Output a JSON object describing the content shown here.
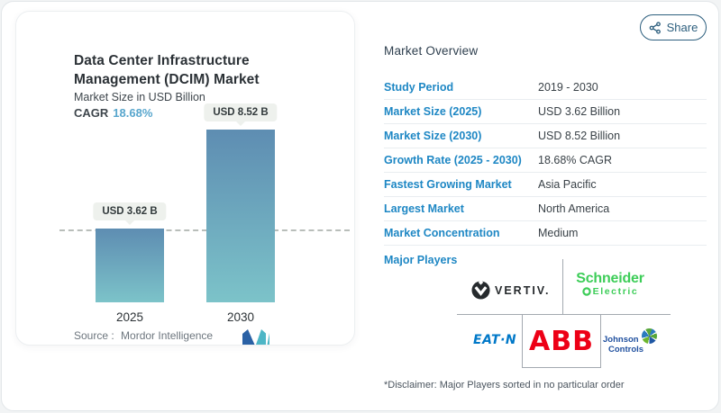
{
  "share": {
    "label": "Share",
    "icon": "share-nodes-icon"
  },
  "chart_card": {
    "title_lines": [
      "Data Center Infrastructure",
      "Management (DCIM) Market"
    ],
    "subtitle": "Market Size in USD Billion",
    "cagr_label": "CAGR",
    "cagr_value": "18.68%",
    "source_label": "Source :",
    "source_value": "Mordor Intelligence",
    "brand_logo": "mordor-intelligence-icon"
  },
  "chart_data": {
    "type": "bar",
    "categories": [
      "2025",
      "2030"
    ],
    "values": [
      3.62,
      8.52
    ],
    "value_labels": [
      "USD 3.62 B",
      "USD 8.52 B"
    ],
    "title": "Data Center Infrastructure Management (DCIM) Market",
    "ylabel": "Market Size in USD Billion",
    "ylim": [
      0,
      8.52
    ],
    "reference_line": 3.62,
    "grid": false,
    "legend": "none",
    "bar_gradient_top": "#5e8db2",
    "bar_gradient_bottom": "#7cc3c9"
  },
  "overview": {
    "title": "Market Overview",
    "rows": [
      {
        "label": "Study Period",
        "value": "2019 - 2030"
      },
      {
        "label": "Market Size (2025)",
        "value": "USD 3.62 Billion"
      },
      {
        "label": "Market Size (2030)",
        "value": "USD 8.52 Billion"
      },
      {
        "label": "Growth Rate (2025 - 2030)",
        "value": "18.68% CAGR"
      },
      {
        "label": "Fastest Growing Market",
        "value": "Asia Pacific"
      },
      {
        "label": "Largest Market",
        "value": "North America"
      },
      {
        "label": "Market Concentration",
        "value": "Medium"
      }
    ],
    "major_players_label": "Major Players",
    "disclaimer": "*Disclaimer: Major Players sorted in no particular order"
  },
  "major_players": {
    "vertiv": {
      "name": "Vertiv",
      "display": "VERTIV."
    },
    "schneider": {
      "name": "Schneider Electric",
      "line1": "Schneider",
      "line2": "Electric"
    },
    "eaton": {
      "name": "Eaton",
      "display": "EAT·N"
    },
    "abb": {
      "name": "ABB",
      "display": "ABB"
    },
    "johnson_controls": {
      "name": "Johnson Controls",
      "line1": "Johnson",
      "line2": "Controls"
    }
  },
  "colors": {
    "accent_blue": "#1e87c4",
    "cagr_blue": "#58a6cd",
    "share_blue": "#2d5f7e",
    "bar_top": "#5e8db2",
    "bar_bottom": "#7cc3c9",
    "schneider_green": "#3dcd58",
    "abb_red": "#ed0016",
    "eaton_blue": "#0078c8",
    "jc_blue": "#20509f",
    "vertiv_black": "#262a2d"
  }
}
